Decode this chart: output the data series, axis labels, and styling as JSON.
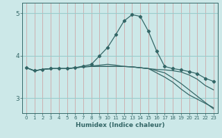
{
  "title": "",
  "xlabel": "Humidex (Indice chaleur)",
  "bg_color": "#cce8e8",
  "grid_vcolor": "#cc9999",
  "grid_hcolor": "#99cccc",
  "line_color": "#336666",
  "xlim": [
    -0.5,
    23.5
  ],
  "ylim": [
    2.65,
    5.25
  ],
  "yticks": [
    3,
    4,
    5
  ],
  "xticks": [
    0,
    1,
    2,
    3,
    4,
    5,
    6,
    7,
    8,
    9,
    10,
    11,
    12,
    13,
    14,
    15,
    16,
    17,
    18,
    19,
    20,
    21,
    22,
    23
  ],
  "lines": [
    {
      "x": [
        0,
        1,
        2,
        3,
        4,
        5,
        6,
        7,
        8,
        9,
        10,
        11,
        12,
        13,
        14,
        15,
        16,
        17,
        18,
        19,
        20,
        21,
        22,
        23
      ],
      "y": [
        3.72,
        3.65,
        3.68,
        3.7,
        3.7,
        3.7,
        3.72,
        3.76,
        3.8,
        4.0,
        4.2,
        4.5,
        4.82,
        4.97,
        4.93,
        4.58,
        4.12,
        3.75,
        3.7,
        3.67,
        3.63,
        3.58,
        3.47,
        3.4
      ],
      "marker": true
    },
    {
      "x": [
        0,
        1,
        2,
        3,
        4,
        5,
        6,
        7,
        8,
        9,
        10,
        11,
        12,
        13,
        14,
        15,
        16,
        17,
        18,
        19,
        20,
        21,
        22,
        23
      ],
      "y": [
        3.72,
        3.65,
        3.68,
        3.7,
        3.7,
        3.7,
        3.72,
        3.74,
        3.76,
        3.78,
        3.8,
        3.78,
        3.75,
        3.74,
        3.72,
        3.7,
        3.68,
        3.67,
        3.65,
        3.62,
        3.55,
        3.45,
        3.3,
        3.2
      ],
      "marker": false
    },
    {
      "x": [
        0,
        1,
        2,
        3,
        4,
        5,
        6,
        7,
        8,
        9,
        10,
        11,
        12,
        13,
        14,
        15,
        16,
        17,
        18,
        19,
        20,
        21,
        22,
        23
      ],
      "y": [
        3.72,
        3.65,
        3.68,
        3.7,
        3.7,
        3.7,
        3.72,
        3.74,
        3.75,
        3.75,
        3.75,
        3.75,
        3.75,
        3.74,
        3.72,
        3.7,
        3.6,
        3.5,
        3.38,
        3.22,
        3.08,
        2.98,
        2.88,
        2.78
      ],
      "marker": false
    },
    {
      "x": [
        0,
        1,
        2,
        3,
        4,
        5,
        6,
        7,
        8,
        9,
        10,
        11,
        12,
        13,
        14,
        15,
        16,
        17,
        18,
        19,
        20,
        21,
        22,
        23
      ],
      "y": [
        3.72,
        3.65,
        3.68,
        3.7,
        3.7,
        3.7,
        3.72,
        3.74,
        3.75,
        3.75,
        3.75,
        3.75,
        3.75,
        3.74,
        3.72,
        3.7,
        3.65,
        3.6,
        3.48,
        3.35,
        3.2,
        3.05,
        2.9,
        2.75
      ],
      "marker": false
    }
  ]
}
